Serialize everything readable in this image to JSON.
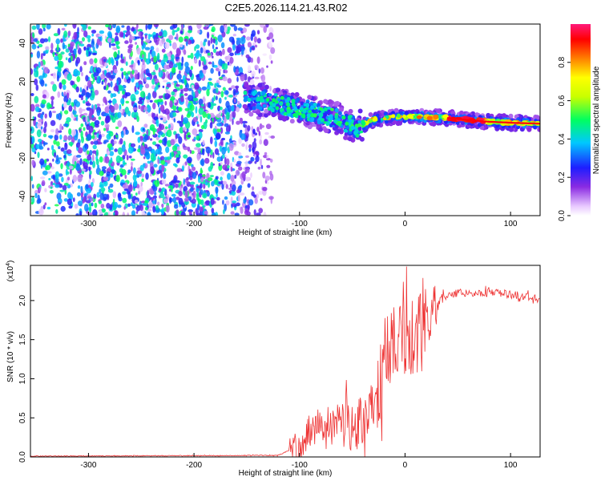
{
  "figure": {
    "title": "C2E5.2026.114.21.43.R02"
  },
  "chart_data": [
    {
      "type": "heatmap",
      "title": "C2E5.2026.114.21.43.R02",
      "xlabel": "Height of straight line (km)",
      "ylabel": "Frequency (Hz)",
      "xlim": [
        -355,
        128
      ],
      "ylim": [
        -50,
        50
      ],
      "xticks": [
        -300,
        -200,
        -100,
        0,
        100
      ],
      "yticks": [
        -40,
        -20,
        0,
        20,
        40
      ],
      "colorbar": {
        "label": "Normalized spectral amplitude",
        "range": [
          0,
          1
        ],
        "ticks": [
          0.0,
          0.2,
          0.4,
          0.6,
          0.8
        ],
        "tick_labels": [
          "0.0",
          "0.2",
          "0.4",
          "0.6",
          "0.8"
        ]
      },
      "ridge_x": [
        -150,
        -130,
        -110,
        -95,
        -80,
        -65,
        -55,
        -45,
        -38,
        -30,
        -20,
        -10,
        0,
        20,
        40,
        60,
        80,
        100,
        128
      ],
      "ridge_y": [
        11,
        10,
        7,
        5,
        3,
        1,
        -2,
        -4,
        -2,
        0,
        1,
        1.5,
        1.5,
        1.5,
        1,
        0,
        -1,
        -1.5,
        -2
      ],
      "noise_region_x": [
        -355,
        -140
      ],
      "noise_amplitude": 0.3
    },
    {
      "type": "line",
      "xlabel": "Height of straight line (km)",
      "ylabel": "SNR (10 * v/v)",
      "y_scale_label": "(x10",
      "y_scale_exponent": "4",
      "xlim": [
        -355,
        128
      ],
      "ylim": [
        0,
        2.45
      ],
      "xticks": [
        -300,
        -200,
        -100,
        0,
        100
      ],
      "yticks": [
        0.0,
        0.5,
        1.0,
        1.5,
        2.0
      ],
      "ytick_labels": [
        "0.0",
        "0.5",
        "1.0",
        "1.5",
        "2.0"
      ],
      "color": "#ee3333",
      "envelope_x": [
        -355,
        -120,
        -100,
        -90,
        -70,
        -55,
        -45,
        -35,
        -25,
        -15,
        -5,
        5,
        15,
        25,
        35,
        50,
        80,
        100,
        128
      ],
      "envelope_y": [
        0.01,
        0.02,
        0.15,
        0.35,
        0.45,
        0.45,
        0.4,
        0.55,
        0.9,
        1.3,
        1.6,
        1.6,
        1.55,
        1.8,
        2.05,
        2.1,
        2.1,
        2.08,
        2.02
      ],
      "noise_amplitude": [
        0.005,
        0.2,
        0.35,
        0.5,
        0.55,
        0.35,
        0.05,
        0.02
      ],
      "noise_breaks_x": [
        -355,
        -110,
        -60,
        -30,
        0,
        18,
        30,
        128
      ]
    }
  ]
}
